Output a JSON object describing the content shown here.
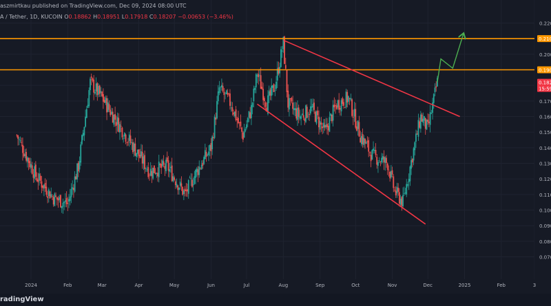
{
  "header": {
    "published": "aszmirtkau published on TradingView.com, Dec 09, 2024 08:00 UTC",
    "symbol": "A / Tether, 1D, KUCOIN",
    "o_label": "O",
    "o_value": "0.18862",
    "h_label": "H",
    "h_value": "0.18951",
    "l_label": "L",
    "l_value": "0.17918",
    "c_label": "C",
    "c_value": "0.18207",
    "change": "−0.00653 (−3.46%)"
  },
  "brand": "radingView",
  "price_tags": [
    {
      "text": "0.210",
      "color": "#ff9800"
    },
    {
      "text": "0.190",
      "color": "#ff9800"
    },
    {
      "text": "0.182",
      "color": "#f23645"
    },
    {
      "text": "15:59",
      "color": "#f23645"
    }
  ],
  "colors": {
    "up": "#26a69a",
    "down": "#ef5350",
    "level": "#ff9800",
    "trend": "#f23645",
    "projection": "#4caf50",
    "grid": "#1f2330",
    "text": "#b2b5be"
  },
  "chart_data": {
    "type": "candlestick",
    "timeframe": "1D",
    "exchange": "KUCOIN",
    "x_ticks": [
      "2024",
      "Feb",
      "Mar",
      "Apr",
      "May",
      "Jun",
      "Jul",
      "Aug",
      "Sep",
      "Oct",
      "Nov",
      "Dec",
      "2025",
      "Feb",
      "3"
    ],
    "y_ticks": [
      "0.220",
      "0.210",
      "0.200",
      "0.190",
      "0.180",
      "0.170",
      "0.160",
      "0.150",
      "0.140",
      "0.130",
      "0.120",
      "0.110",
      "0.100",
      "0.090",
      "0.080",
      "0.070"
    ],
    "ylim": [
      0.065,
      0.225
    ],
    "horizontal_levels": [
      0.21,
      0.19
    ],
    "last_price": 0.18207,
    "price_path": [
      {
        "date": "2023-12-20",
        "price": 0.148
      },
      {
        "date": "2024-01-05",
        "price": 0.122
      },
      {
        "date": "2024-01-20",
        "price": 0.108
      },
      {
        "date": "2024-02-01",
        "price": 0.104
      },
      {
        "date": "2024-02-10",
        "price": 0.128
      },
      {
        "date": "2024-02-20",
        "price": 0.182
      },
      {
        "date": "2024-03-01",
        "price": 0.172
      },
      {
        "date": "2024-03-15",
        "price": 0.155
      },
      {
        "date": "2024-03-28",
        "price": 0.14
      },
      {
        "date": "2024-04-10",
        "price": 0.125
      },
      {
        "date": "2024-04-25",
        "price": 0.128
      },
      {
        "date": "2024-05-10",
        "price": 0.11
      },
      {
        "date": "2024-05-20",
        "price": 0.125
      },
      {
        "date": "2024-06-01",
        "price": 0.14
      },
      {
        "date": "2024-06-08",
        "price": 0.178
      },
      {
        "date": "2024-06-18",
        "price": 0.168
      },
      {
        "date": "2024-06-28",
        "price": 0.148
      },
      {
        "date": "2024-07-05",
        "price": 0.165
      },
      {
        "date": "2024-07-10",
        "price": 0.188
      },
      {
        "date": "2024-07-18",
        "price": 0.168
      },
      {
        "date": "2024-07-25",
        "price": 0.18
      },
      {
        "date": "2024-08-01",
        "price": 0.207
      },
      {
        "date": "2024-08-05",
        "price": 0.168
      },
      {
        "date": "2024-08-15",
        "price": 0.16
      },
      {
        "date": "2024-08-25",
        "price": 0.165
      },
      {
        "date": "2024-09-05",
        "price": 0.15
      },
      {
        "date": "2024-09-15",
        "price": 0.168
      },
      {
        "date": "2024-09-25",
        "price": 0.172
      },
      {
        "date": "2024-10-05",
        "price": 0.148
      },
      {
        "date": "2024-10-15",
        "price": 0.135
      },
      {
        "date": "2024-10-28",
        "price": 0.13
      },
      {
        "date": "2024-11-03",
        "price": 0.112
      },
      {
        "date": "2024-11-10",
        "price": 0.105
      },
      {
        "date": "2024-11-18",
        "price": 0.135
      },
      {
        "date": "2024-11-25",
        "price": 0.16
      },
      {
        "date": "2024-12-01",
        "price": 0.152
      },
      {
        "date": "2024-12-09",
        "price": 0.182
      }
    ],
    "trendlines": [
      {
        "from": {
          "date": "2024-08-01",
          "price": 0.209
        },
        "to": {
          "date": "2024-12-28",
          "price": 0.16
        }
      },
      {
        "from": {
          "date": "2024-07-10",
          "price": 0.168
        },
        "to": {
          "date": "2024-11-29",
          "price": 0.091
        }
      }
    ],
    "projection": [
      {
        "date": "2024-12-09",
        "price": 0.182
      },
      {
        "date": "2024-12-12",
        "price": 0.197
      },
      {
        "date": "2024-12-22",
        "price": 0.191
      },
      {
        "date": "2024-12-31",
        "price": 0.213
      }
    ]
  }
}
